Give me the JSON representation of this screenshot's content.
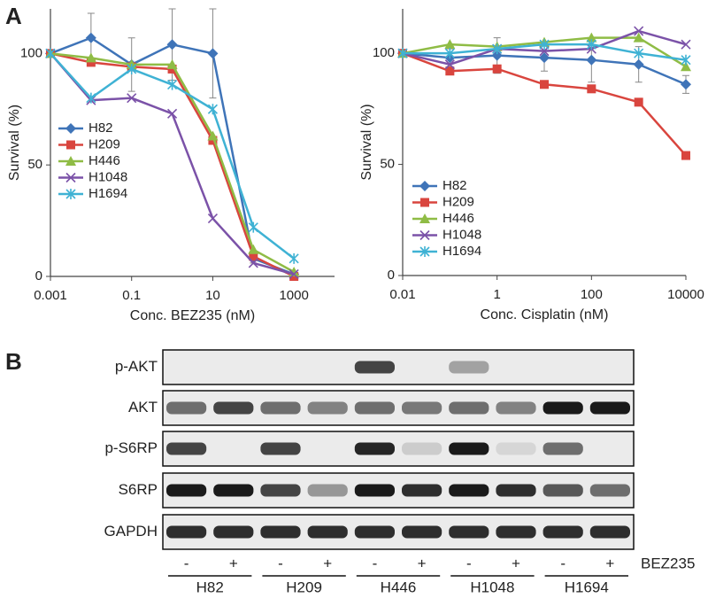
{
  "panel_labels": [
    "A",
    "B"
  ],
  "chart_data": [
    {
      "type": "line",
      "xscale": "log",
      "xlabel": "Conc. BEZ235 (nM)",
      "ylabel": "Survival (%)",
      "x": [
        0.001,
        0.01,
        0.1,
        1,
        10,
        100,
        1000
      ],
      "xlim": [
        0.001,
        10000
      ],
      "xticks": [
        0.001,
        0.1,
        10,
        1000
      ],
      "ylim": [
        0,
        120
      ],
      "yticks": [
        0,
        50,
        100
      ],
      "legend": "lower left",
      "series": [
        {
          "name": "H82",
          "color": "#3f74b8",
          "marker": "diamond",
          "values": [
            100,
            107,
            95,
            104,
            100,
            8,
            1
          ],
          "errors": [
            0,
            11,
            12,
            16,
            20,
            2,
            1
          ]
        },
        {
          "name": "H209",
          "color": "#d9453e",
          "marker": "square",
          "values": [
            100,
            96,
            94,
            93,
            61,
            9,
            0
          ]
        },
        {
          "name": "H446",
          "color": "#8fbc45",
          "marker": "triangle",
          "values": [
            100,
            98,
            95,
            95,
            63,
            12,
            2
          ]
        },
        {
          "name": "H1048",
          "color": "#7b52a8",
          "marker": "x",
          "values": [
            100,
            79,
            80,
            73,
            26,
            6,
            1
          ]
        },
        {
          "name": "H1694",
          "color": "#3fb2d4",
          "marker": "star",
          "values": [
            100,
            80,
            93,
            86,
            75,
            22,
            8
          ]
        }
      ]
    },
    {
      "type": "line",
      "xscale": "log",
      "xlabel": "Conc. Cisplatin (nM)",
      "ylabel": "Survival (%)",
      "x": [
        0.01,
        0.1,
        1,
        10,
        100,
        1000,
        10000
      ],
      "xlim": [
        0.01,
        10000
      ],
      "xticks": [
        0.01,
        1,
        100,
        10000
      ],
      "ylim": [
        0,
        120
      ],
      "yticks": [
        0,
        50,
        100
      ],
      "legend": "lower left",
      "series": [
        {
          "name": "H82",
          "color": "#3f74b8",
          "marker": "diamond",
          "values": [
            100,
            98,
            99,
            98,
            97,
            95,
            86
          ],
          "errors": [
            0,
            4,
            8,
            6,
            10,
            8,
            4
          ]
        },
        {
          "name": "H209",
          "color": "#d9453e",
          "marker": "square",
          "values": [
            100,
            92,
            93,
            86,
            84,
            78,
            54
          ]
        },
        {
          "name": "H446",
          "color": "#8fbc45",
          "marker": "triangle",
          "values": [
            100,
            104,
            103,
            105,
            107,
            107,
            94
          ]
        },
        {
          "name": "H1048",
          "color": "#7b52a8",
          "marker": "x",
          "values": [
            100,
            95,
            102,
            101,
            102,
            110,
            104
          ]
        },
        {
          "name": "H1694",
          "color": "#3fb2d4",
          "marker": "star",
          "values": [
            100,
            100,
            102,
            104,
            104,
            100,
            97
          ]
        }
      ]
    }
  ],
  "blot": {
    "rows": [
      "p-AKT",
      "AKT",
      "p-S6RP",
      "S6RP",
      "GAPDH"
    ],
    "lanes": [
      "-",
      "+",
      "-",
      "+",
      "-",
      "+",
      "-",
      "+",
      "-",
      "+"
    ],
    "treatment": "BEZ235",
    "cell_lines": [
      "H82",
      "H209",
      "H446",
      "H1048",
      "H1694"
    ]
  }
}
